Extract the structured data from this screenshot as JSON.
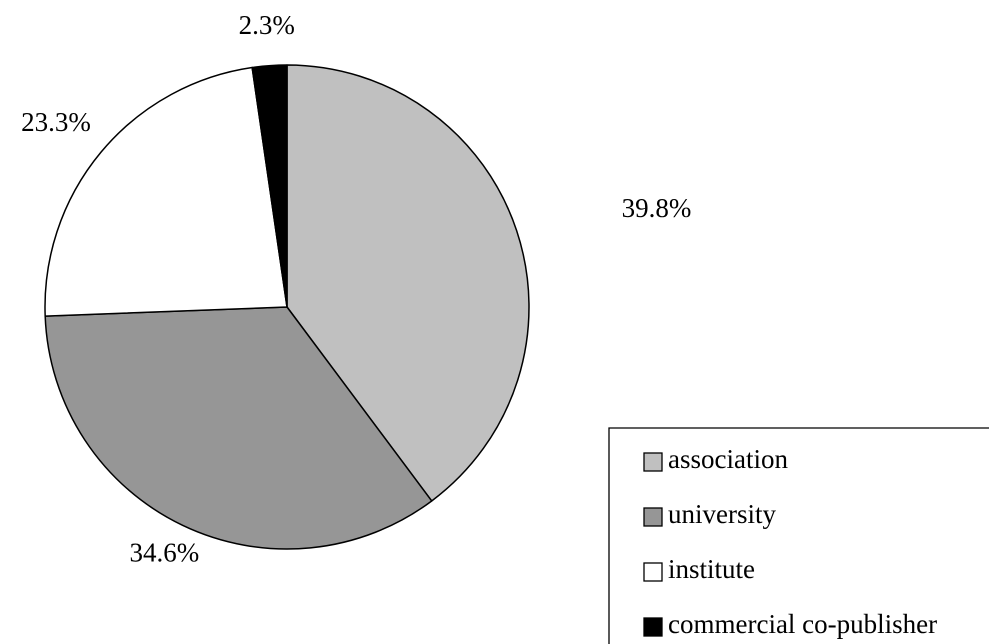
{
  "chart_data": {
    "type": "pie",
    "categories": [
      "association",
      "university",
      "institute",
      "commercial co-publisher"
    ],
    "values": [
      39.8,
      34.6,
      23.3,
      2.3
    ],
    "data_labels": [
      "39.8%",
      "34.6%",
      "23.3%",
      "2.3%"
    ],
    "colors": [
      "#c0c0c0",
      "#969696",
      "#ffffff",
      "#000000"
    ],
    "start_angle_deg": 0,
    "direction": "clockwise",
    "legend": {
      "placement": "bottom-right",
      "items": [
        {
          "label": "association",
          "color": "#c0c0c0"
        },
        {
          "label": "university",
          "color": "#969696"
        },
        {
          "label": "institute",
          "color": "#ffffff"
        },
        {
          "label": "commercial co-publisher",
          "color": "#000000"
        }
      ]
    }
  }
}
